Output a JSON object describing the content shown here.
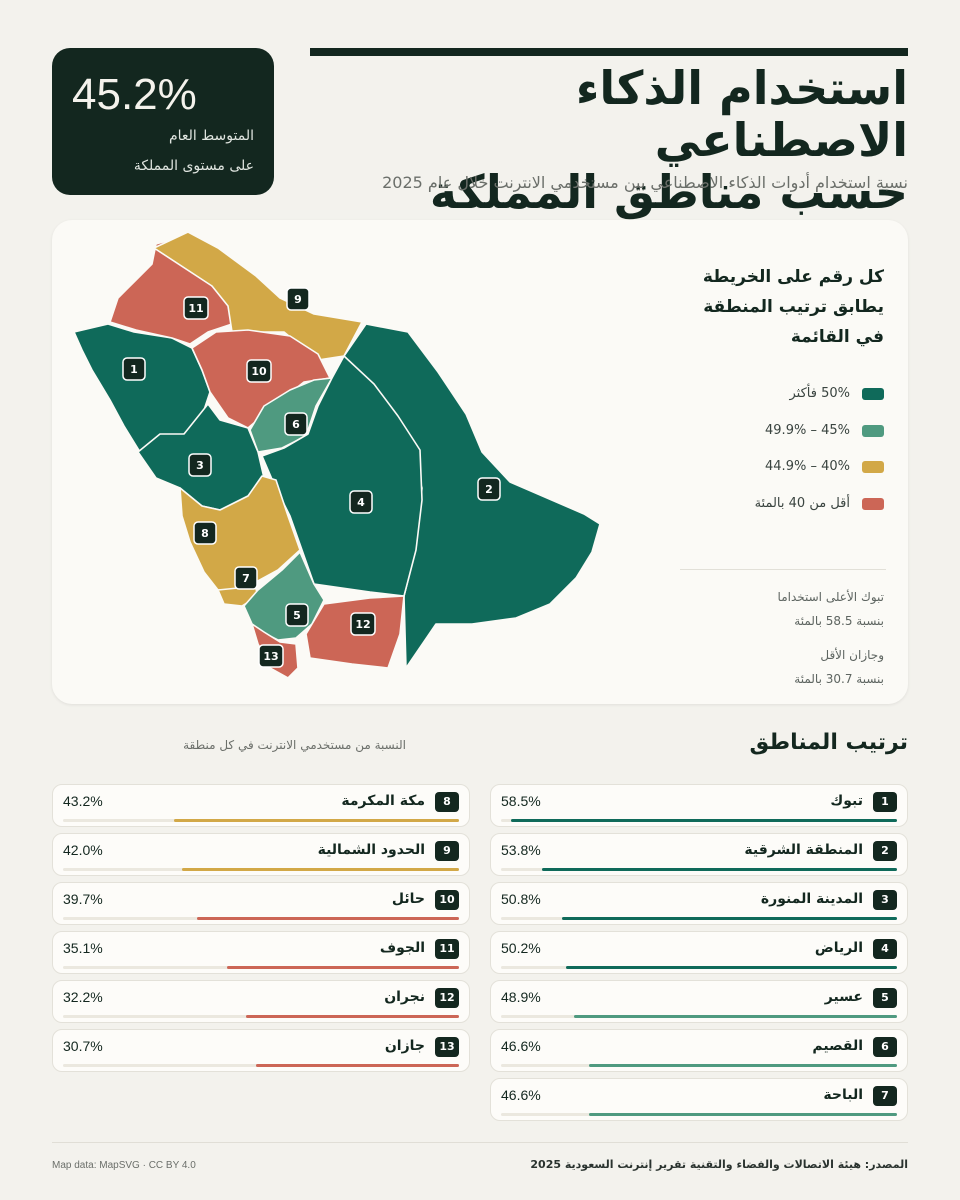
{
  "header": {
    "title_line1": "استخدام الذكاء الاصطناعي",
    "title_line2": "حسب مناطق المملكة",
    "subtitle": "نسبة استخدام أدوات الذكاء الاصطناعي بين مستخدمي الانترنت خلال عام 2025"
  },
  "average": {
    "value": "45.2%",
    "label_line1": "المتوسط العام",
    "label_line2": "على مستوى المملكة"
  },
  "map_note": {
    "line1": "كل رقم على الخريطة",
    "line2": "يطابق ترتيب المنطقة",
    "line3": "في القائمة"
  },
  "legend": [
    {
      "label": "50% فأكثر",
      "color": "#0f6a5a"
    },
    {
      "label": "45% – 49.9%",
      "color": "#4f9a80"
    },
    {
      "label": "40% – 44.9%",
      "color": "#d2a847"
    },
    {
      "label": "أقل من 40 بالمئة",
      "color": "#cc6656"
    }
  ],
  "facts": {
    "top_line1": "تبوك الأعلى استخداما",
    "top_line2": "بنسبة 58.5 بالمئة",
    "low_line1": "وجازان الأقل",
    "low_line2": "بنسبة 30.7 بالمئة"
  },
  "ranking": {
    "title": "ترتيب المناطق",
    "caption": "النسبة من مستخدمي الانترنت في كل منطقة",
    "regions": [
      {
        "rank": "1",
        "name": "تبوك",
        "pct_label": "58.5%",
        "value": 58.5,
        "color": "#0f6a5a"
      },
      {
        "rank": "2",
        "name": "المنطقة الشرقية",
        "pct_label": "53.8%",
        "value": 53.8,
        "color": "#0f6a5a"
      },
      {
        "rank": "3",
        "name": "المدينة المنورة",
        "pct_label": "50.8%",
        "value": 50.8,
        "color": "#0f6a5a"
      },
      {
        "rank": "4",
        "name": "الرياض",
        "pct_label": "50.2%",
        "value": 50.2,
        "color": "#0f6a5a"
      },
      {
        "rank": "5",
        "name": "عسير",
        "pct_label": "48.9%",
        "value": 48.9,
        "color": "#4f9a80"
      },
      {
        "rank": "6",
        "name": "القصيم",
        "pct_label": "46.6%",
        "value": 46.6,
        "color": "#4f9a80"
      },
      {
        "rank": "7",
        "name": "الباحة",
        "pct_label": "46.6%",
        "value": 46.6,
        "color": "#4f9a80"
      },
      {
        "rank": "8",
        "name": "مكة المكرمة",
        "pct_label": "43.2%",
        "value": 43.2,
        "color": "#d2a847"
      },
      {
        "rank": "9",
        "name": "الحدود الشمالية",
        "pct_label": "42.0%",
        "value": 42.0,
        "color": "#d2a847"
      },
      {
        "rank": "10",
        "name": "حائل",
        "pct_label": "39.7%",
        "value": 39.7,
        "color": "#cc6656"
      },
      {
        "rank": "11",
        "name": "الجوف",
        "pct_label": "35.1%",
        "value": 35.1,
        "color": "#cc6656"
      },
      {
        "rank": "12",
        "name": "نجران",
        "pct_label": "32.2%",
        "value": 32.2,
        "color": "#cc6656"
      },
      {
        "rank": "13",
        "name": "جازان",
        "pct_label": "30.7%",
        "value": 30.7,
        "color": "#cc6656"
      }
    ]
  },
  "footer": {
    "source": "المصدر: هيئة الاتصالات والفضاء والتقنية  تقرير إنترنت السعودية 2025",
    "credit": "Map data: MapSVG · CC BY 4.0"
  }
}
